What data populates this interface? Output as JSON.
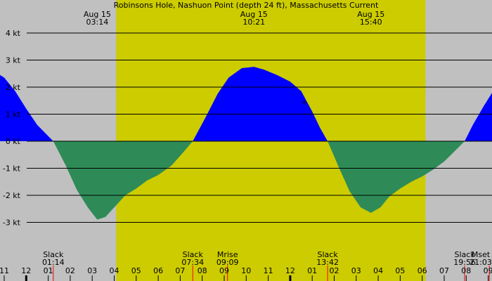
{
  "chart_data": {
    "type": "area",
    "title": "Robinsons Hole, Nashuon Point (depth 24 ft), Massachusetts Current",
    "xlabel": "",
    "ylabel": "",
    "unit": "kt",
    "ylim": [
      -4.2,
      4.6
    ],
    "xlim": [
      10.6,
      33.3
    ],
    "grid": true,
    "colors": {
      "flood": "#0000ff",
      "ebb": "#2e8b57",
      "day": "#cccc00",
      "night": "#c0c0c0",
      "gridline": "#000000",
      "event_tick": "#ff0000"
    },
    "daylight": {
      "start": 16.09,
      "end": 30.15
    },
    "y_ticks": [
      {
        "value": 4,
        "label": "4 kt"
      },
      {
        "value": 3,
        "label": "3 kt"
      },
      {
        "value": 2,
        "label": "2 kt"
      },
      {
        "value": 1,
        "label": "1 kt"
      },
      {
        "value": 0,
        "label": "0 kt"
      },
      {
        "value": -1,
        "label": "-1 kt"
      },
      {
        "value": -2,
        "label": "-2 kt"
      },
      {
        "value": -3,
        "label": "-3 kt"
      }
    ],
    "x_ticks": [
      {
        "value": 11,
        "label": "11"
      },
      {
        "value": 12,
        "label": "12"
      },
      {
        "value": 13,
        "label": "01"
      },
      {
        "value": 14,
        "label": "02"
      },
      {
        "value": 15,
        "label": "03"
      },
      {
        "value": 16,
        "label": "04"
      },
      {
        "value": 17,
        "label": "05"
      },
      {
        "value": 18,
        "label": "06"
      },
      {
        "value": 19,
        "label": "07"
      },
      {
        "value": 20,
        "label": "08"
      },
      {
        "value": 21,
        "label": "09"
      },
      {
        "value": 22,
        "label": "10"
      },
      {
        "value": 23,
        "label": "11"
      },
      {
        "value": 24,
        "label": "12"
      },
      {
        "value": 25,
        "label": "01"
      },
      {
        "value": 26,
        "label": "02"
      },
      {
        "value": 27,
        "label": "03"
      },
      {
        "value": 28,
        "label": "04"
      },
      {
        "value": 29,
        "label": "05"
      },
      {
        "value": 30,
        "label": "06"
      },
      {
        "value": 31,
        "label": "07"
      },
      {
        "value": 32,
        "label": "08"
      },
      {
        "value": 33,
        "label": "09"
      }
    ],
    "top_annotations": [
      {
        "date": "Aug 15",
        "time": "03:14",
        "x": 15.23
      },
      {
        "date": "Aug 15",
        "time": "10:21",
        "x": 22.35
      },
      {
        "date": "Aug 15",
        "time": "15:40",
        "x": 27.67
      }
    ],
    "bottom_events": [
      {
        "name": "Slack",
        "time": "01:14",
        "x": 13.23
      },
      {
        "name": "Slack",
        "time": "07:34",
        "x": 19.57
      },
      {
        "name": "Mrise",
        "time": "09:09",
        "x": 21.15
      },
      {
        "name": "Slack",
        "time": "13:42",
        "x": 25.7
      },
      {
        "name": "Slack",
        "time": "19:56",
        "x": 31.93
      },
      {
        "name": "Mset",
        "time": "21:03",
        "x": 33.05
      }
    ],
    "series": [
      {
        "points": [
          [
            10.6,
            2.55
          ],
          [
            11.0,
            2.35
          ],
          [
            11.5,
            1.85
          ],
          [
            12.0,
            1.2
          ],
          [
            12.5,
            0.6
          ],
          [
            13.23,
            0
          ],
          [
            13.8,
            -0.9
          ],
          [
            14.3,
            -1.8
          ],
          [
            14.8,
            -2.45
          ],
          [
            15.23,
            -2.9
          ],
          [
            15.6,
            -2.8
          ],
          [
            16.0,
            -2.45
          ],
          [
            16.5,
            -2.0
          ],
          [
            17.0,
            -1.75
          ],
          [
            17.5,
            -1.45
          ],
          [
            18.0,
            -1.25
          ],
          [
            18.6,
            -0.9
          ],
          [
            19.1,
            -0.45
          ],
          [
            19.57,
            0
          ],
          [
            20.1,
            0.8
          ],
          [
            20.7,
            1.75
          ],
          [
            21.2,
            2.35
          ],
          [
            21.8,
            2.7
          ],
          [
            22.35,
            2.75
          ],
          [
            22.8,
            2.65
          ],
          [
            23.4,
            2.45
          ],
          [
            24.0,
            2.2
          ],
          [
            24.5,
            1.85
          ],
          [
            25.0,
            1.1
          ],
          [
            25.35,
            0.5
          ],
          [
            25.7,
            0
          ],
          [
            26.2,
            -0.95
          ],
          [
            26.7,
            -1.85
          ],
          [
            27.2,
            -2.45
          ],
          [
            27.67,
            -2.65
          ],
          [
            28.1,
            -2.45
          ],
          [
            28.5,
            -2.05
          ],
          [
            29.0,
            -1.75
          ],
          [
            29.5,
            -1.5
          ],
          [
            30.0,
            -1.3
          ],
          [
            30.5,
            -1.05
          ],
          [
            31.0,
            -0.75
          ],
          [
            31.5,
            -0.35
          ],
          [
            31.93,
            0
          ],
          [
            32.3,
            0.6
          ],
          [
            32.8,
            1.3
          ],
          [
            33.3,
            1.95
          ]
        ]
      }
    ]
  }
}
